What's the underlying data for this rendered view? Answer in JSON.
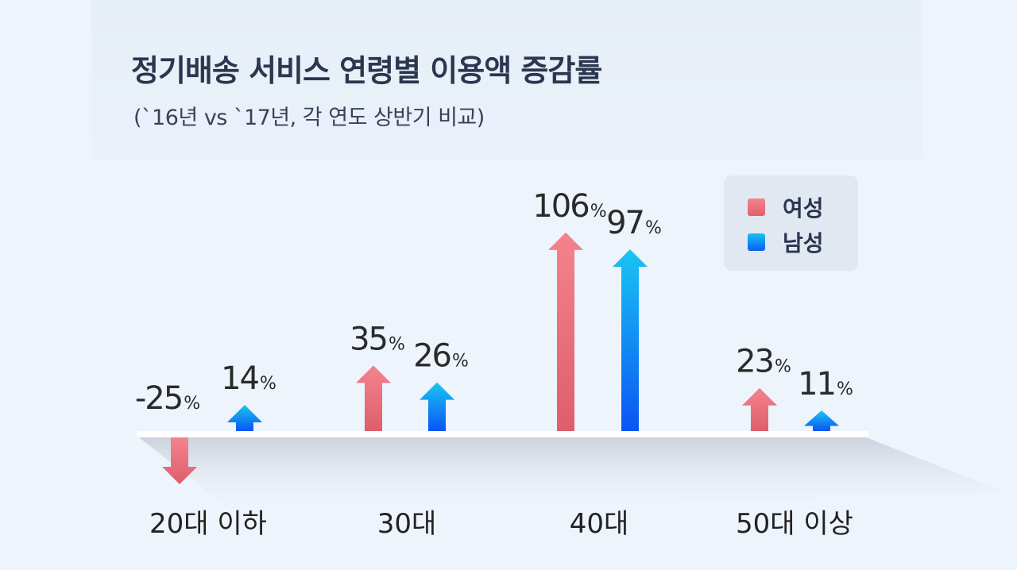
{
  "title": "정기배송 서비스 연령별 이용액 증감률",
  "subtitle": "(`16년 vs `17년, 각 연도 상반기 비교)",
  "legend": {
    "female": "여성",
    "male": "남성"
  },
  "colors": {
    "female": "#e8707c",
    "male": "#1a8cf2",
    "baseline": "#ffffff"
  },
  "chart_data": {
    "type": "bar",
    "categories": [
      "20대 이하",
      "30대",
      "40대",
      "50대 이상"
    ],
    "series": [
      {
        "name": "여성",
        "values": [
          -25,
          35,
          106,
          23
        ]
      },
      {
        "name": "남성",
        "values": [
          14,
          26,
          97,
          11
        ]
      }
    ],
    "value_labels": {
      "여성": [
        "-25",
        "35",
        "106",
        "23"
      ],
      "남성": [
        "14",
        "26",
        "97",
        "11"
      ]
    },
    "unit": "%",
    "legend_position": "top-right"
  }
}
